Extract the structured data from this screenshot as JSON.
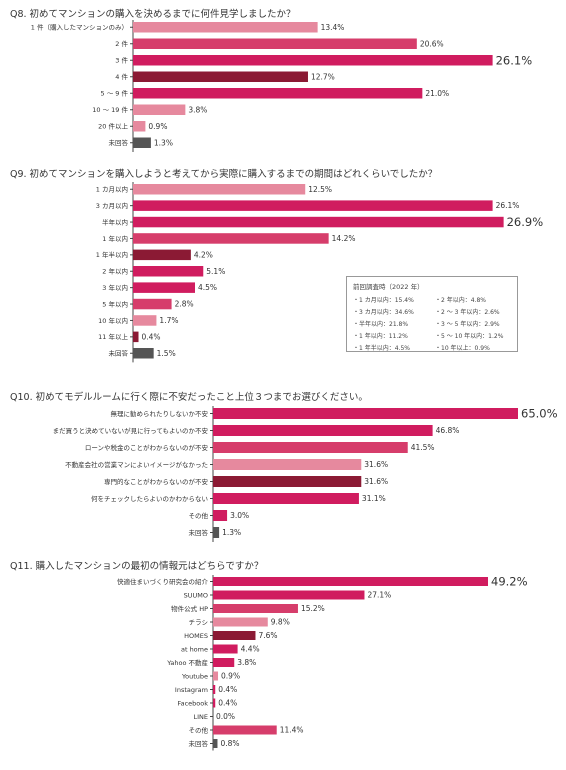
{
  "charts": [
    {
      "title": "Q8. 初めてマンションの購入を決めるまでに何件見学しましたか？",
      "chart_data": {
        "type": "bar",
        "orientation": "horizontal",
        "categories": [
          "1 件（購入したマンションのみ）",
          "2 件",
          "3 件",
          "4 件",
          "5 〜 9 件",
          "10 〜 19 件",
          "20 件以上",
          "未回答"
        ],
        "values": [
          13.4,
          20.6,
          26.1,
          12.7,
          21.0,
          3.8,
          0.9,
          1.3
        ],
        "labels": [
          "13.4%",
          "20.6%",
          "26.1%",
          "12.7%",
          "21.0%",
          "3.8%",
          "0.9%",
          "1.3%"
        ],
        "colors": [
          "#e6899e",
          "#d63d6b",
          "#d01c5f",
          "#8b1a34",
          "#d01c5f",
          "#e6899e",
          "#e6899e",
          "#555555"
        ],
        "highlight_index": 2,
        "xmax": 27
      }
    },
    {
      "title": "Q9. 初めてマンションを購入しようと考えてから実際に購入するまでの期間はどれくらいでしたか？",
      "chart_data": {
        "type": "bar",
        "orientation": "horizontal",
        "categories": [
          "1 カ月以内",
          "3 カ月以内",
          "半年以内",
          "1 年以内",
          "1 年半以内",
          "2 年以内",
          "3 年以内",
          "5 年以内",
          "10 年以内",
          "11 年以上",
          "未回答"
        ],
        "values": [
          12.5,
          26.1,
          26.9,
          14.2,
          4.2,
          5.1,
          4.5,
          2.8,
          1.7,
          0.4,
          1.5
        ],
        "labels": [
          "12.5%",
          "26.1%",
          "26.9%",
          "14.2%",
          "4.2%",
          "5.1%",
          "4.5%",
          "2.8%",
          "1.7%",
          "0.4%",
          "1.5%"
        ],
        "colors": [
          "#e6899e",
          "#d01c5f",
          "#d01c5f",
          "#d63d6b",
          "#8b1a34",
          "#d01c5f",
          "#d01c5f",
          "#d63d6b",
          "#e6899e",
          "#8b1a34",
          "#555555"
        ],
        "highlight_index": 2,
        "xmax": 27,
        "annotation": {
          "title": "前回調査時（2022 年）",
          "items": [
            "・1 カ月以内：15.4%",
            "・2 年以内：4.8%",
            "・3 カ月以内：34.6%",
            "・2 〜 3 年以内：2.6%",
            "・半年以内：21.8%",
            "・3 〜 5 年以内：2.9%",
            "・1 年以内：11.2%",
            "・5 〜 10 年以内：1.2%",
            "・1 年半以内：4.5%",
            "・10 年以上：0.9%"
          ]
        }
      }
    },
    {
      "title": "Q10. 初めてモデルルームに行く際に不安だったこと上位３つまでお選びください。",
      "chart_data": {
        "type": "bar",
        "orientation": "horizontal",
        "categories": [
          "無理に勧められたりしないか不安",
          "まだ買うと決めていないが見に行ってもよいのか不安",
          "ローンや税金のことがわからないのが不安",
          "不動産会社の営業マンによいイメージがなかった",
          "専門的なことがわからないのが不安",
          "何をチェックしたらよいのかわからない",
          "その他",
          "未回答"
        ],
        "values": [
          65.0,
          46.8,
          41.5,
          31.6,
          31.6,
          31.1,
          3.0,
          1.3
        ],
        "labels": [
          "65.0%",
          "46.8%",
          "41.5%",
          "31.6%",
          "31.6%",
          "31.1%",
          "3.0%",
          "1.3%"
        ],
        "colors": [
          "#d01c5f",
          "#d01c5f",
          "#d63d6b",
          "#e6899e",
          "#8b1a34",
          "#d01c5f",
          "#d01c5f",
          "#555555"
        ],
        "highlight_index": 0,
        "xmax": 65
      }
    },
    {
      "title": "Q11. 購入したマンションの最初の情報元はどちらですか？",
      "chart_data": {
        "type": "bar",
        "orientation": "horizontal",
        "categories": [
          "快適住まいづくり研究会の紹介",
          "SUUMO",
          "物件公式 HP",
          "チラシ",
          "HOMES",
          "at home",
          "Yahoo 不動産",
          "Youtube",
          "Instagram",
          "Facebook",
          "LINE",
          "その他",
          "未回答"
        ],
        "values": [
          49.2,
          27.1,
          15.2,
          9.8,
          7.6,
          4.4,
          3.8,
          0.9,
          0.4,
          0.4,
          0.0,
          11.4,
          0.8
        ],
        "labels": [
          "49.2%",
          "27.1%",
          "15.2%",
          "9.8%",
          "7.6%",
          "4.4%",
          "3.8%",
          "0.9%",
          "0.4%",
          "0.4%",
          "0.0%",
          "11.4%",
          "0.8%"
        ],
        "colors": [
          "#d01c5f",
          "#d01c5f",
          "#d63d6b",
          "#e6899e",
          "#8b1a34",
          "#d01c5f",
          "#d01c5f",
          "#e6899e",
          "#d01c5f",
          "#d01c5f",
          "#d01c5f",
          "#d63d6b",
          "#555555"
        ],
        "highlight_index": 0,
        "xmax": 49.2
      }
    }
  ]
}
